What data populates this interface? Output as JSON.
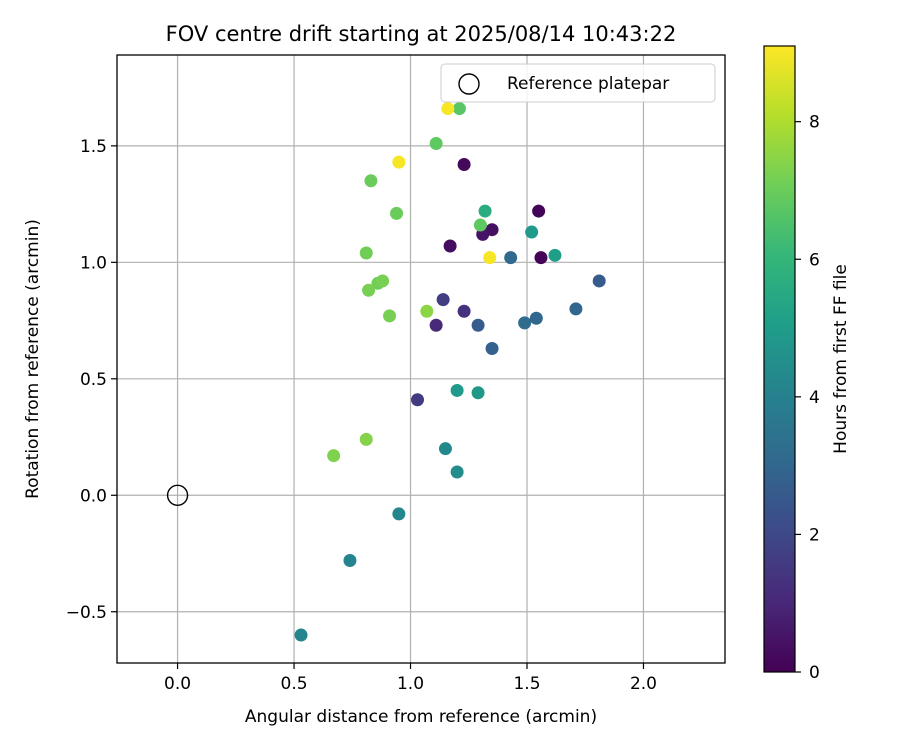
{
  "chart_data": {
    "type": "scatter",
    "title": "FOV centre drift starting at 2025/08/14 10:43:22",
    "xlabel": "Angular distance from reference (arcmin)",
    "ylabel": "Rotation from reference (arcmin)",
    "xlim": [
      -0.26,
      2.35
    ],
    "ylim": [
      -0.72,
      1.89
    ],
    "xticks": [
      0.0,
      0.5,
      1.0,
      1.5,
      2.0
    ],
    "xtick_labels": [
      "0.0",
      "0.5",
      "1.0",
      "1.5",
      "2.0"
    ],
    "yticks": [
      -0.5,
      0.0,
      0.5,
      1.0,
      1.5
    ],
    "ytick_labels": [
      "−0.5",
      "0.0",
      "0.5",
      "1.0",
      "1.5"
    ],
    "grid": true,
    "legend": {
      "placement": "top-right",
      "entries": [
        "Reference platepar"
      ]
    },
    "reference_point": {
      "name": "Reference platepar",
      "x": 0.0,
      "y": 0.0
    },
    "colorbar": {
      "label": "Hours from first FF file",
      "colormap": "viridis",
      "range": [
        0,
        9.1
      ],
      "ticks": [
        0,
        2,
        4,
        6,
        8
      ],
      "tick_labels": [
        "0",
        "2",
        "4",
        "6",
        "8"
      ]
    },
    "colormap_stops": [
      "#440154",
      "#482878",
      "#3e4989",
      "#31688e",
      "#26828e",
      "#1f9e89",
      "#35b779",
      "#6ece58",
      "#b5de2b",
      "#fde725"
    ],
    "points": [
      {
        "x": 1.55,
        "y": 1.22,
        "h": 0.1
      },
      {
        "x": 1.56,
        "y": 1.02,
        "h": 0.1
      },
      {
        "x": 1.23,
        "y": 1.42,
        "h": 0.2
      },
      {
        "x": 1.17,
        "y": 1.07,
        "h": 0.3
      },
      {
        "x": 1.35,
        "y": 1.14,
        "h": 0.4
      },
      {
        "x": 1.31,
        "y": 1.12,
        "h": 0.5
      },
      {
        "x": 1.11,
        "y": 0.73,
        "h": 1.1
      },
      {
        "x": 1.23,
        "y": 0.79,
        "h": 1.3
      },
      {
        "x": 1.03,
        "y": 0.41,
        "h": 1.6
      },
      {
        "x": 1.14,
        "y": 0.84,
        "h": 1.7
      },
      {
        "x": 1.29,
        "y": 0.73,
        "h": 2.6
      },
      {
        "x": 1.35,
        "y": 0.63,
        "h": 2.8
      },
      {
        "x": 1.81,
        "y": 0.92,
        "h": 2.6
      },
      {
        "x": 1.71,
        "y": 0.8,
        "h": 3.0
      },
      {
        "x": 1.54,
        "y": 0.76,
        "h": 3.0
      },
      {
        "x": 1.49,
        "y": 0.74,
        "h": 3.2
      },
      {
        "x": 1.43,
        "y": 1.02,
        "h": 3.1
      },
      {
        "x": 0.53,
        "y": -0.6,
        "h": 4.1
      },
      {
        "x": 0.74,
        "y": -0.28,
        "h": 4.1
      },
      {
        "x": 0.95,
        "y": -0.08,
        "h": 4.2
      },
      {
        "x": 1.15,
        "y": 0.2,
        "h": 4.3
      },
      {
        "x": 1.2,
        "y": 0.1,
        "h": 4.4
      },
      {
        "x": 1.29,
        "y": 0.44,
        "h": 4.8
      },
      {
        "x": 1.2,
        "y": 0.45,
        "h": 4.9
      },
      {
        "x": 1.52,
        "y": 1.13,
        "h": 4.9
      },
      {
        "x": 1.62,
        "y": 1.03,
        "h": 5.1
      },
      {
        "x": 1.32,
        "y": 1.22,
        "h": 5.6
      },
      {
        "x": 1.21,
        "y": 1.66,
        "h": 6.7
      },
      {
        "x": 1.11,
        "y": 1.51,
        "h": 6.8
      },
      {
        "x": 1.3,
        "y": 1.16,
        "h": 6.8
      },
      {
        "x": 0.83,
        "y": 1.35,
        "h": 7.0
      },
      {
        "x": 0.94,
        "y": 1.21,
        "h": 7.0
      },
      {
        "x": 0.81,
        "y": 1.04,
        "h": 7.1
      },
      {
        "x": 0.86,
        "y": 0.91,
        "h": 7.1
      },
      {
        "x": 0.88,
        "y": 0.92,
        "h": 7.2
      },
      {
        "x": 0.82,
        "y": 0.88,
        "h": 7.2
      },
      {
        "x": 0.91,
        "y": 0.77,
        "h": 7.2
      },
      {
        "x": 1.07,
        "y": 0.79,
        "h": 7.5
      },
      {
        "x": 0.67,
        "y": 0.17,
        "h": 7.3
      },
      {
        "x": 0.81,
        "y": 0.24,
        "h": 7.4
      },
      {
        "x": 0.95,
        "y": 1.43,
        "h": 9.0
      },
      {
        "x": 1.16,
        "y": 1.66,
        "h": 9.0
      },
      {
        "x": 1.34,
        "y": 1.02,
        "h": 9.0
      }
    ]
  }
}
